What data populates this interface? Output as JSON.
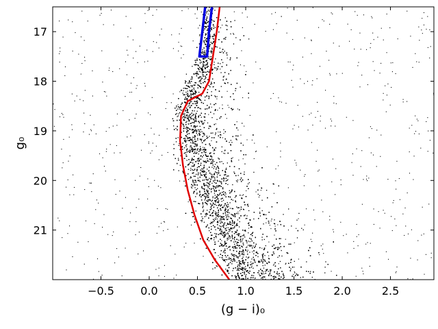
{
  "chart_data": {
    "type": "scatter",
    "title": "",
    "xlabel": "(g − i)₀",
    "ylabel": "g₀",
    "xlim": [
      -1.0,
      2.95
    ],
    "ylim": [
      16.5,
      22.0
    ],
    "y_inverted": true,
    "grid": false,
    "legend": "none",
    "xticks": [
      -0.5,
      0.0,
      0.5,
      1.0,
      1.5,
      2.0,
      2.5
    ],
    "xtick_labels": [
      "−0.5",
      "0.0",
      "0.5",
      "1.0",
      "1.5",
      "2.0",
      "2.5"
    ],
    "yticks": [
      17,
      18,
      19,
      20,
      21
    ],
    "ytick_labels": [
      "17",
      "18",
      "19",
      "20",
      "21"
    ],
    "series": [
      {
        "kind": "points",
        "color": "#000000",
        "dense_sequence": [
          [
            0.62,
            16.5
          ],
          [
            0.6,
            17.0
          ],
          [
            0.57,
            17.5
          ],
          [
            0.52,
            17.9
          ],
          [
            0.42,
            18.3
          ],
          [
            0.4,
            18.7
          ],
          [
            0.43,
            19.1
          ],
          [
            0.48,
            19.5
          ],
          [
            0.55,
            19.9
          ],
          [
            0.63,
            20.3
          ],
          [
            0.72,
            20.7
          ],
          [
            0.82,
            21.1
          ],
          [
            0.93,
            21.5
          ],
          [
            1.05,
            21.9
          ]
        ],
        "sparse_field_color_range": [
          -1.0,
          2.95
        ],
        "sparse_field_mag_range": [
          16.5,
          22.0
        ]
      },
      {
        "kind": "line",
        "color": "#e00000",
        "points": [
          [
            0.73,
            16.5
          ],
          [
            0.7,
            17.0
          ],
          [
            0.66,
            17.5
          ],
          [
            0.62,
            18.0
          ],
          [
            0.55,
            18.25
          ],
          [
            0.4,
            18.4
          ],
          [
            0.33,
            18.7
          ],
          [
            0.32,
            19.2
          ],
          [
            0.35,
            19.7
          ],
          [
            0.4,
            20.2
          ],
          [
            0.47,
            20.7
          ],
          [
            0.56,
            21.2
          ],
          [
            0.68,
            21.6
          ],
          [
            0.83,
            22.0
          ]
        ]
      },
      {
        "kind": "line",
        "color": "#0000e0",
        "points": [
          [
            0.65,
            16.5
          ],
          [
            0.62,
            17.0
          ],
          [
            0.6,
            17.5
          ],
          [
            0.52,
            17.5
          ],
          [
            0.55,
            17.0
          ],
          [
            0.58,
            16.5
          ]
        ]
      }
    ]
  }
}
